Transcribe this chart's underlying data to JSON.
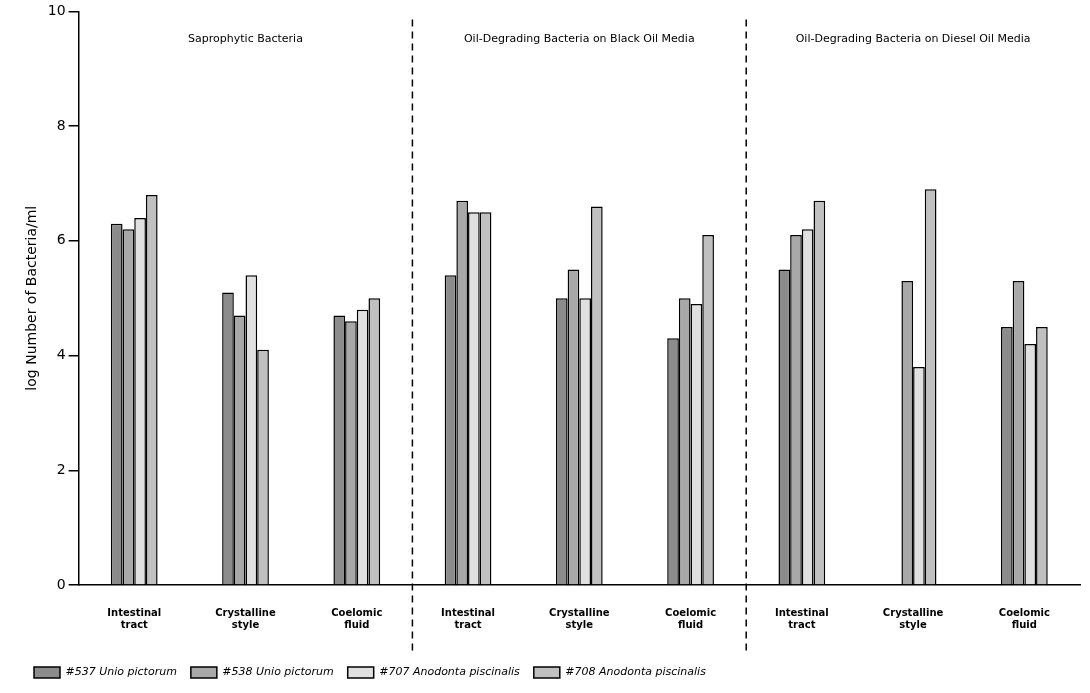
{
  "chart_data": {
    "type": "bar",
    "categories": [
      "Intestinal tract",
      "Crystalline style",
      "Coelomic fluid",
      "Intestinal tract",
      "Crystalline style",
      "Coelomic fluid",
      "Intestinal tract",
      "Crystalline style",
      "Coelomic fluid"
    ],
    "series": [
      {
        "name": "#537 Unio pictorum",
        "color": "#8c8c8c",
        "values": [
          6.3,
          5.1,
          4.7,
          5.4,
          5.0,
          4.3,
          5.5,
          null,
          4.5
        ]
      },
      {
        "name": "#538 Unio pictorum",
        "color": "#a8a8a8",
        "values": [
          6.2,
          4.7,
          4.6,
          6.7,
          5.5,
          5.0,
          6.1,
          5.3,
          5.3
        ]
      },
      {
        "name": "#707 Anodonta piscinalis",
        "color": "#e0e0e0",
        "values": [
          6.4,
          5.4,
          4.8,
          6.5,
          5.0,
          4.9,
          6.2,
          3.8,
          4.2
        ]
      },
      {
        "name": "#708 Anodonta piscinalis",
        "color": "#c0c0c0",
        "values": [
          6.8,
          4.1,
          5.0,
          6.5,
          6.6,
          6.1,
          6.7,
          6.9,
          4.5
        ]
      }
    ],
    "ylabel": "log Number of Bacteria/ml",
    "ylim": [
      0,
      10
    ],
    "yticks": [
      0,
      2,
      4,
      6,
      8,
      10
    ],
    "annotations": [
      "Saprophytic Bacteria",
      "Oil-Degrading Bacteria on Black Oil Media",
      "Oil-Degrading Bacteria on Diesel Oil Media"
    ],
    "grid": false,
    "legend": "bottom"
  }
}
